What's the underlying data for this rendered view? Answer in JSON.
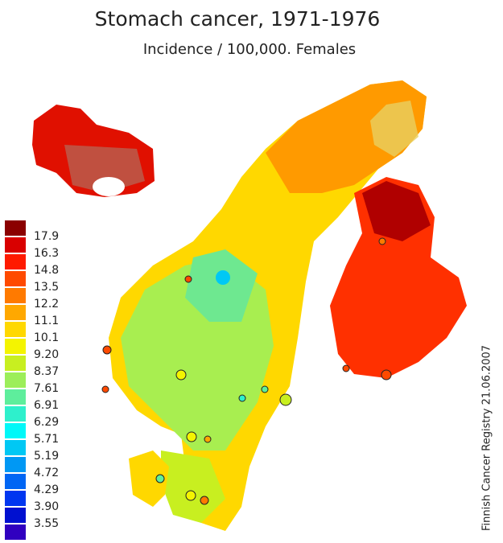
{
  "header": {
    "title": "Stomach cancer, 1971-1976",
    "subtitle": "Incidence / 100,000. Females"
  },
  "legend": {
    "colors": [
      "#8b0000",
      "#d90000",
      "#ff1a00",
      "#ff4a00",
      "#ff7a00",
      "#ffa800",
      "#ffd800",
      "#f4f400",
      "#c8ef20",
      "#9cee5a",
      "#5eee9c",
      "#2ef0cc",
      "#00f8f8",
      "#00c8f4",
      "#0098f4",
      "#0066f4",
      "#0036f0",
      "#0010d0",
      "#3000c0"
    ],
    "labels": [
      "17.9",
      "16.3",
      "14.8",
      "13.5",
      "12.2",
      "11.1",
      "10.1",
      "9.20",
      "8.37",
      "7.61",
      "6.91",
      "6.29",
      "5.71",
      "5.19",
      "4.72",
      "4.29",
      "3.90",
      "3.55"
    ]
  },
  "credit": "Finnish Cancer Registry 21.06.2007"
}
